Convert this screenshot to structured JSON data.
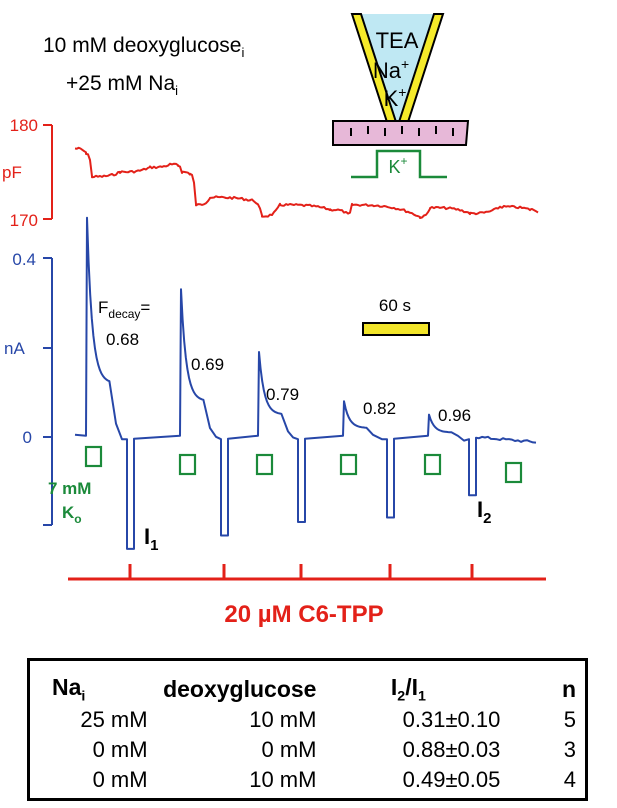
{
  "conditions": {
    "line1_main": "10 mM deoxyglucose",
    "line1_sub": "i",
    "line2_main": "+25 mM Na",
    "line2_sub": "i"
  },
  "pipette": {
    "labels": [
      "TEA",
      "Na",
      "K"
    ],
    "na_sup": "+",
    "k_sup": "+",
    "step_label": "K",
    "step_sup": "+"
  },
  "capacitance_axis": {
    "unit": "pF",
    "ticks": [
      "180",
      "170"
    ],
    "color": "#e32119"
  },
  "current_axis": {
    "unit": "nA",
    "ticks": [
      "0.4",
      "0"
    ],
    "color": "#2747a8"
  },
  "annotations": {
    "fdecay_main": "F",
    "fdecay_sub": "decay",
    "fdecay_eq": "=",
    "decay_values": [
      "0.68",
      "0.69",
      "0.79",
      "0.82",
      "0.96"
    ],
    "scale_bar": "60 s",
    "scale_bar_color": "#f2e52a",
    "ko_label": "7 mM",
    "ko_main": "K",
    "ko_sub": "o",
    "i1_main": "I",
    "i1_sub": "1",
    "i2_main": "I",
    "i2_sub": "2",
    "drug_label": "20 µM C6-TPP",
    "k_pulse_color": "#1b8a3a"
  },
  "chart_data": {
    "type": "line",
    "series": [
      {
        "axis": "capacitance (pF)",
        "values": [
          177.5,
          177,
          174.5,
          175,
          175.5,
          175.8,
          175.7,
          175,
          174.8,
          171.5,
          172.3,
          172.0,
          170.3,
          171.5,
          171.0,
          170.5,
          171.5,
          170.2,
          171.2,
          170.6,
          171.3,
          171.0,
          170.8
        ]
      },
      {
        "axis": "current (nA)",
        "values": [
          0,
          0.32,
          0.17,
          0.1,
          0.02,
          -0.04,
          -0.19,
          0,
          0.23,
          0.1,
          -0.16,
          0,
          0.13,
          0.06,
          -0.12,
          0,
          0.06,
          0.02,
          -0.14,
          0,
          0.04,
          0.01,
          -0.1,
          0,
          -0.02
        ]
      }
    ],
    "decay_fractions": [
      0.68,
      0.69,
      0.79,
      0.82,
      0.96
    ],
    "cap_ylim": [
      170,
      180
    ],
    "current_ylim": [
      -0.2,
      0.4
    ]
  },
  "table": {
    "headers": [
      "Na",
      "deoxyglucose",
      "I",
      "n"
    ],
    "header_subs": [
      "i",
      "",
      "2",
      ""
    ],
    "header_ratio_tail": "/I",
    "header_ratio_tail_sub": "1",
    "rows": [
      [
        "25 mM",
        "10 mM",
        "0.31±0.10",
        "5"
      ],
      [
        "0 mM",
        "0 mM",
        "0.88±0.03",
        "3"
      ],
      [
        "0 mM",
        "10 mM",
        "0.49±0.05",
        "4"
      ]
    ]
  }
}
